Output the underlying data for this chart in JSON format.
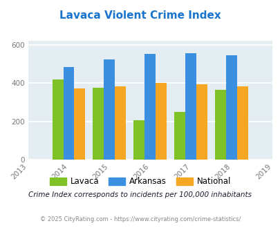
{
  "title": "Lavaca Violent Crime Index",
  "years": [
    2014,
    2015,
    2016,
    2017,
    2018
  ],
  "lavaca": [
    420,
    375,
    205,
    248,
    365
  ],
  "arkansas": [
    483,
    525,
    553,
    557,
    545
  ],
  "national": [
    372,
    383,
    400,
    395,
    383
  ],
  "xlim": [
    2013,
    2019
  ],
  "ylim": [
    0,
    620
  ],
  "yticks": [
    0,
    200,
    400,
    600
  ],
  "bar_width": 0.27,
  "colors": {
    "lavaca": "#7EC227",
    "arkansas": "#3A8FE0",
    "national": "#F5A623"
  },
  "bg_color": "#E4EEF2",
  "title_color": "#1874CD",
  "grid_color": "#FFFFFF",
  "subtitle": "Crime Index corresponds to incidents per 100,000 inhabitants",
  "copyright": "© 2025 CityRating.com - https://www.cityrating.com/crime-statistics/",
  "subtitle_color": "#1a1a2e",
  "copyright_color": "#888888",
  "legend_labels": [
    "Lavaca",
    "Arkansas",
    "National"
  ]
}
